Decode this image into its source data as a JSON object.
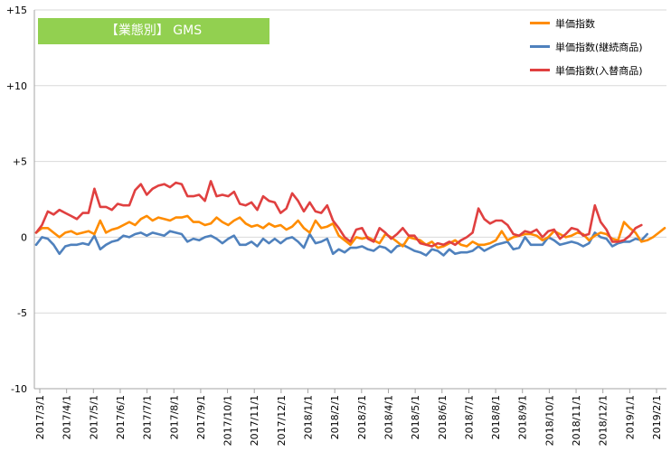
{
  "chart_data": {
    "type": "line",
    "title": "【業態別】 GMS",
    "title_color": "#92d050",
    "yticks": [
      "+15",
      "+10",
      "+5",
      "0",
      "-5",
      "-10"
    ],
    "ytick_values": [
      15,
      10,
      5,
      0,
      -5,
      -10
    ],
    "ylim": [
      -10,
      15
    ],
    "grid": "horizontal",
    "legend_position": "top-right",
    "x_labels": [
      "2017/3/1",
      "2017/4/1",
      "2017/5/1",
      "2017/6/1",
      "2017/7/1",
      "2017/8/1",
      "2017/9/1",
      "2017/10/1",
      "2017/11/1",
      "2017/12/1",
      "2018/1/1",
      "2018/2/1",
      "2018/3/1",
      "2018/4/1",
      "2018/5/1",
      "2018/6/1",
      "2018/7/1",
      "2018/8/1",
      "2018/9/1",
      "2018/10/1",
      "2018/11/1",
      "2018/12/1",
      "2019/1/1",
      "2019/2/1"
    ],
    "series": [
      {
        "name": "単価指数",
        "color": "#ff8c00",
        "values": [
          0.3,
          0.6,
          0.6,
          0.3,
          0.0,
          0.3,
          0.4,
          0.2,
          0.3,
          0.4,
          0.2,
          1.1,
          0.3,
          0.5,
          0.6,
          0.8,
          1.0,
          0.8,
          1.2,
          1.4,
          1.1,
          1.3,
          1.2,
          1.1,
          1.3,
          1.3,
          1.4,
          1.0,
          1.0,
          0.8,
          0.9,
          1.3,
          1.0,
          0.8,
          1.1,
          1.3,
          0.9,
          0.7,
          0.8,
          0.6,
          0.9,
          0.7,
          0.8,
          0.5,
          0.7,
          1.1,
          0.6,
          0.3,
          1.1,
          0.6,
          0.7,
          0.9,
          0.1,
          -0.2,
          -0.5,
          0.0,
          -0.1,
          0.0,
          -0.2,
          -0.4,
          0.2,
          0.0,
          -0.3,
          -0.6,
          0.0,
          -0.1,
          -0.2,
          -0.5,
          -0.3,
          -0.7,
          -0.6,
          -0.4,
          -0.2,
          -0.5,
          -0.6,
          -0.3,
          -0.5,
          -0.5,
          -0.4,
          -0.2,
          0.4,
          -0.2,
          0.0,
          0.1,
          0.2,
          0.2,
          0.1,
          -0.2,
          0.0,
          0.4,
          0.2,
          0.0,
          0.1,
          0.3,
          0.2,
          -0.2,
          0.1,
          0.3,
          0.2,
          -0.1,
          -0.2,
          1.0,
          0.6,
          0.3,
          -0.3,
          -0.2,
          0.0,
          0.3,
          0.6
        ]
      },
      {
        "name": "単価指数(継続商品)",
        "color": "#4f81bd",
        "values": [
          -0.5,
          0.0,
          -0.1,
          -0.5,
          -1.1,
          -0.6,
          -0.5,
          -0.5,
          -0.4,
          -0.5,
          0.1,
          -0.8,
          -0.5,
          -0.3,
          -0.2,
          0.1,
          0.0,
          0.2,
          0.3,
          0.1,
          0.3,
          0.2,
          0.1,
          0.4,
          0.3,
          0.2,
          -0.3,
          -0.1,
          -0.2,
          0.0,
          0.1,
          -0.1,
          -0.4,
          -0.1,
          0.1,
          -0.5,
          -0.5,
          -0.3,
          -0.6,
          -0.1,
          -0.4,
          -0.1,
          -0.4,
          -0.1,
          0.0,
          -0.3,
          -0.7,
          0.2,
          -0.4,
          -0.3,
          -0.1,
          -1.1,
          -0.8,
          -1.0,
          -0.7,
          -0.7,
          -0.6,
          -0.8,
          -0.9,
          -0.6,
          -0.7,
          -1.0,
          -0.6,
          -0.5,
          -0.7,
          -0.9,
          -1.0,
          -1.2,
          -0.8,
          -0.9,
          -1.2,
          -0.8,
          -1.1,
          -1.0,
          -1.0,
          -0.9,
          -0.6,
          -0.9,
          -0.7,
          -0.5,
          -0.4,
          -0.3,
          -0.8,
          -0.7,
          0.0,
          -0.5,
          -0.5,
          -0.5,
          0.0,
          -0.2,
          -0.5,
          -0.4,
          -0.3,
          -0.4,
          -0.6,
          -0.4,
          0.3,
          0.0,
          -0.1,
          -0.6,
          -0.4,
          -0.3,
          -0.3,
          -0.1,
          -0.2,
          0.2
        ]
      },
      {
        "name": "単価指数(入替商品)",
        "color": "#e04040",
        "values": [
          0.3,
          0.8,
          1.7,
          1.5,
          1.8,
          1.6,
          1.4,
          1.2,
          1.6,
          1.6,
          3.2,
          2.0,
          2.0,
          1.8,
          2.2,
          2.1,
          2.1,
          3.1,
          3.5,
          2.8,
          3.2,
          3.4,
          3.5,
          3.3,
          3.6,
          3.5,
          2.7,
          2.7,
          2.8,
          2.4,
          3.7,
          2.7,
          2.8,
          2.7,
          3.0,
          2.2,
          2.1,
          2.3,
          1.8,
          2.7,
          2.4,
          2.3,
          1.6,
          1.9,
          2.9,
          2.4,
          1.7,
          2.3,
          1.7,
          1.6,
          2.1,
          1.1,
          0.6,
          0.0,
          -0.3,
          0.5,
          0.6,
          -0.1,
          -0.3,
          0.6,
          0.3,
          -0.1,
          0.2,
          0.6,
          0.1,
          0.1,
          -0.4,
          -0.5,
          -0.6,
          -0.4,
          -0.5,
          -0.3,
          -0.5,
          -0.2,
          0.0,
          0.3,
          1.9,
          1.2,
          0.9,
          1.1,
          1.1,
          0.8,
          0.2,
          0.1,
          0.4,
          0.3,
          0.5,
          0.0,
          0.4,
          0.5,
          -0.1,
          0.2,
          0.6,
          0.5,
          0.1,
          0.2,
          2.1,
          1.0,
          0.5,
          -0.3,
          -0.3,
          -0.2,
          0.1,
          0.6,
          0.8
        ]
      }
    ]
  }
}
